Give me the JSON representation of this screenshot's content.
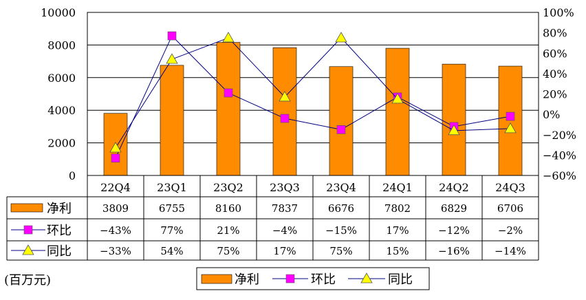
{
  "chart_data": {
    "type": "bar",
    "categories": [
      "22Q4",
      "23Q1",
      "23Q2",
      "23Q3",
      "23Q4",
      "24Q1",
      "24Q2",
      "24Q3"
    ],
    "series": [
      {
        "name": "净利",
        "type": "bar",
        "axis": "left",
        "color": "#ff8c00",
        "values": [
          3809,
          6755,
          8160,
          7837,
          6676,
          7802,
          6829,
          6706
        ]
      },
      {
        "name": "环比",
        "type": "line",
        "axis": "right",
        "color": "#ff00ff",
        "marker": "square",
        "values": [
          -43,
          77,
          21,
          -4,
          -15,
          17,
          -12,
          -2
        ]
      },
      {
        "name": "同比",
        "type": "line",
        "axis": "right",
        "color": "#ffff00",
        "marker": "triangle",
        "values": [
          -33,
          54,
          75,
          17,
          75,
          15,
          -16,
          -14
        ]
      }
    ],
    "table": {
      "rows": [
        {
          "label": "净利",
          "cells": [
            "3809",
            "6755",
            "8160",
            "7837",
            "6676",
            "7802",
            "6829",
            "6706"
          ]
        },
        {
          "label": "环比",
          "cells": [
            "-43%",
            "77%",
            "21%",
            "-4%",
            "-15%",
            "17%",
            "-12%",
            "-2%"
          ]
        },
        {
          "label": "同比",
          "cells": [
            "-33%",
            "54%",
            "75%",
            "17%",
            "75%",
            "15%",
            "-16%",
            "-14%"
          ]
        }
      ]
    },
    "y_left": {
      "min": 0,
      "max": 10000,
      "step": 2000,
      "ticks": [
        "0",
        "2000",
        "4000",
        "6000",
        "8000",
        "10000"
      ]
    },
    "y_right": {
      "min": -60,
      "max": 100,
      "step": 20,
      "ticks": [
        "-60%",
        "-40%",
        "-20%",
        "0%",
        "20%",
        "40%",
        "60%",
        "80%",
        "100%"
      ]
    },
    "unit_label": "(百万元)",
    "legend": {
      "placement": "bottom",
      "items": [
        "净利",
        "环比",
        "同比"
      ]
    },
    "grid": true
  }
}
